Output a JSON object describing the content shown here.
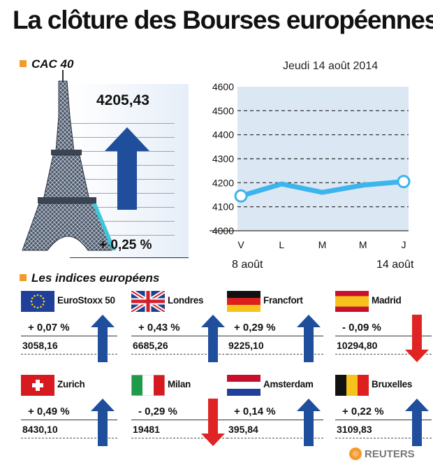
{
  "title": "La clôture des Bourses européennes",
  "cac_section": {
    "label": "CAC 40",
    "value": "4205,43",
    "change": "+ 0,25 %"
  },
  "europe_section": {
    "label": "Les indices européens"
  },
  "source": "REUTERS",
  "colors": {
    "accent": "#f39a2c",
    "line": "#3cb4ec",
    "up": "#1f4e9c",
    "down": "#e02424"
  },
  "chart_data": {
    "type": "line",
    "title": "Jeudi 14 août 2014",
    "categories": [
      "V",
      "L",
      "M",
      "M",
      "J"
    ],
    "x_sub_labels": [
      "8 août",
      "14 août"
    ],
    "values": [
      4145,
      4195,
      4160,
      4190,
      4205
    ],
    "ylim": [
      4000,
      4600
    ],
    "yticks": [
      4000,
      4100,
      4200,
      4300,
      4400,
      4500,
      4600
    ],
    "grid": true
  },
  "markets": [
    {
      "name": "EuroStoxx 50",
      "change": "+ 0,07 %",
      "value": "3058,16",
      "direction": "up",
      "flag": "eu"
    },
    {
      "name": "Londres",
      "change": "+ 0,43 %",
      "value": "6685,26",
      "direction": "up",
      "flag": "uk"
    },
    {
      "name": "Francfort",
      "change": "+ 0,29 %",
      "value": "9225,10",
      "direction": "up",
      "flag": "de"
    },
    {
      "name": "Madrid",
      "change": "- 0,09 %",
      "value": "10294,80",
      "direction": "down",
      "flag": "es"
    },
    {
      "name": "Zurich",
      "change": "+ 0,49 %",
      "value": "8430,10",
      "direction": "up",
      "flag": "ch"
    },
    {
      "name": "Milan",
      "change": "- 0,29 %",
      "value": "19481",
      "direction": "down",
      "flag": "it"
    },
    {
      "name": "Amsterdam",
      "change": "+ 0,14 %",
      "value": "395,84",
      "direction": "up",
      "flag": "nl"
    },
    {
      "name": "Bruxelles",
      "change": "+ 0,22 %",
      "value": "3109,83",
      "direction": "up",
      "flag": "be"
    }
  ]
}
